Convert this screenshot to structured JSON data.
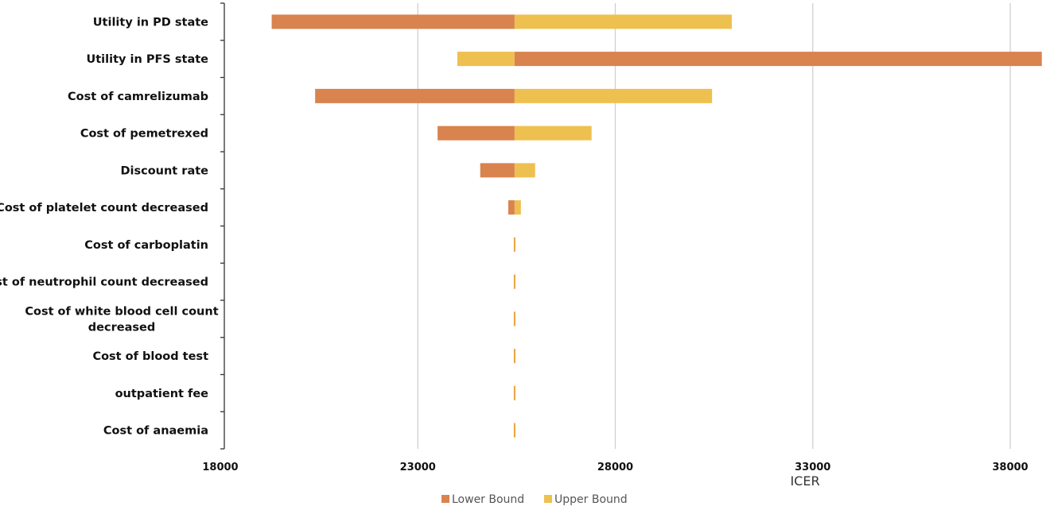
{
  "chart_data": {
    "type": "bar",
    "orientation": "horizontal",
    "subtype": "tornado",
    "base_value": 25450,
    "xlabel": "ICER",
    "xlim": [
      18000,
      39000
    ],
    "xticks": [
      18000,
      23000,
      28000,
      33000,
      38000
    ],
    "grid": true,
    "legend_position": "bottom",
    "colors": {
      "Lower Bound": "#D9834F",
      "Upper Bound": "#EEC04F"
    },
    "categories": [
      {
        "label": [
          "Utility in PD state"
        ],
        "low": 19300,
        "high": 30950,
        "left_series": "Lower Bound"
      },
      {
        "label": [
          "Utility in PFS state"
        ],
        "low": 24000,
        "high": 38800,
        "left_series": "Upper Bound"
      },
      {
        "label": [
          "Cost of camrelizumab"
        ],
        "low": 20400,
        "high": 30450,
        "left_series": "Lower Bound"
      },
      {
        "label": [
          "Cost of pemetrexed"
        ],
        "low": 23500,
        "high": 27400,
        "left_series": "Lower Bound"
      },
      {
        "label": [
          "Discount rate"
        ],
        "low": 24580,
        "high": 25970,
        "left_series": "Lower Bound"
      },
      {
        "label": [
          "Cost of platelet count decreased"
        ],
        "low": 25290,
        "high": 25610,
        "left_series": "Lower Bound"
      },
      {
        "label": [
          "Cost of carboplatin"
        ],
        "low": 25420,
        "high": 25480,
        "left_series": "Lower Bound"
      },
      {
        "label": [
          "Cost of neutrophil count decreased"
        ],
        "low": 25425,
        "high": 25475,
        "left_series": "Lower Bound"
      },
      {
        "label": [
          "Cost of white blood cell count",
          "decreased"
        ],
        "low": 25425,
        "high": 25475,
        "left_series": "Lower Bound"
      },
      {
        "label": [
          "Cost of blood test"
        ],
        "low": 25425,
        "high": 25475,
        "left_series": "Lower Bound"
      },
      {
        "label": [
          "outpatient fee"
        ],
        "low": 25425,
        "high": 25475,
        "left_series": "Lower Bound"
      },
      {
        "label": [
          "Cost of anaemia"
        ],
        "low": 25425,
        "high": 25475,
        "left_series": "Lower Bound"
      }
    ],
    "series": [
      {
        "name": "Lower Bound"
      },
      {
        "name": "Upper Bound"
      }
    ]
  }
}
